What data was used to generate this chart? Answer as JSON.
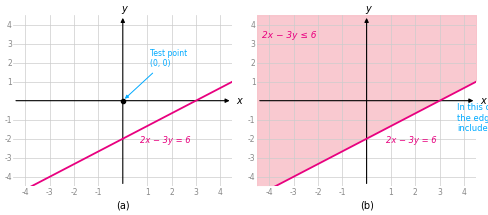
{
  "xlim": [
    -4.5,
    4.5
  ],
  "ylim": [
    -4.5,
    4.5
  ],
  "xticks": [
    -4,
    -3,
    -2,
    -1,
    1,
    2,
    3,
    4
  ],
  "yticks": [
    -4,
    -3,
    -2,
    -1,
    1,
    2,
    3,
    4
  ],
  "line_color": "#e8007f",
  "line_label_a": "2x − 3y = 6",
  "line_label_b": "2x − 3y = 6",
  "inequality_label": "2x − 3y ≤ 6",
  "test_point_label": "Test point\n(0, 0)",
  "test_point_color": "#00aaff",
  "shading_color": "#f8c0c8",
  "shading_alpha": 0.6,
  "annotation_text": "In this case,\nthe edge is\nincluded.",
  "annotation_color": "#00aaff",
  "label_a": "(a)",
  "label_b": "(b)",
  "grid_color": "#cccccc",
  "axis_color": "black",
  "tick_color": "#888888",
  "background": "white"
}
